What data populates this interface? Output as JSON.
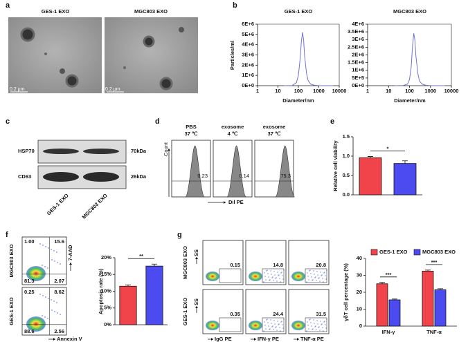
{
  "panel_a": {
    "letter": "a",
    "images": [
      {
        "title": "GES-1 EXO",
        "scale_bar": "0.2 μm"
      },
      {
        "title": "MGC803 EXO",
        "scale_bar": "0.2 μm"
      }
    ]
  },
  "panel_b": {
    "letter": "b"
  },
  "panel_c": {
    "letter": "c",
    "rows": [
      {
        "protein": "HSP70",
        "size": "70kDa"
      },
      {
        "protein": "CD63",
        "size": "26kDa"
      }
    ],
    "lanes": [
      "GES-1 EXO",
      "MGC803 EXO"
    ]
  },
  "panel_d": {
    "letter": "d",
    "y_label": "Count",
    "x_label": "Dil PE",
    "samples": [
      {
        "name": "PBS",
        "temp": "37 ℃",
        "percent": "0.23"
      },
      {
        "name": "exosome",
        "temp": "4 ℃",
        "percent": "0.14"
      },
      {
        "name": "exosome",
        "temp": "37 ℃",
        "percent": "75.3"
      }
    ]
  },
  "panel_e": {
    "letter": "e"
  },
  "panel_f": {
    "letter": "f",
    "x_label": "Annexin V",
    "y_label": "7-AAD",
    "rows": [
      {
        "name": "MGC803 EXO",
        "quadrants": [
          "1.00",
          "15.6",
          "81.3",
          "2.07"
        ]
      },
      {
        "name": "GES-1 EXO",
        "quadrants": [
          "0.25",
          "8.62",
          "88.6",
          "2.56"
        ]
      }
    ]
  },
  "panel_g": {
    "letter": "g",
    "y_label": "SS",
    "columns": [
      "IgG PE",
      "IFN-γ PE",
      "TNF-α PE"
    ],
    "rows": [
      {
        "name": "MGC803 EXO",
        "percents": [
          "0.15",
          "14.8",
          "20.8"
        ]
      },
      {
        "name": "GES-1 EXO",
        "percents": [
          "0.35",
          "24.4",
          "31.5"
        ]
      }
    ]
  },
  "chart_data": [
    {
      "type": "line",
      "title": "GES-1 EXO",
      "x_label": "Diameter/nm",
      "y_label": "Particles/ml",
      "log_x": true,
      "color": "#7070d8",
      "x": [
        20,
        50,
        80,
        100,
        120,
        140,
        160,
        180,
        200,
        250,
        300,
        400,
        600,
        1000,
        5000
      ],
      "values": [
        0,
        20000,
        300000,
        1000000,
        2500000,
        4300000,
        5200000,
        4500000,
        3000000,
        1200000,
        500000,
        150000,
        50000,
        10000,
        0
      ],
      "xlim": [
        1,
        10000
      ],
      "xticks": [
        1,
        10,
        100,
        1000,
        10000
      ],
      "ylim": [
        0,
        6000000
      ],
      "yticks": [
        {
          "value": 0,
          "label": "0E+0"
        },
        {
          "value": 1000000,
          "label": "1E+6"
        },
        {
          "value": 2000000,
          "label": "2E+6"
        },
        {
          "value": 3000000,
          "label": "3E+6"
        },
        {
          "value": 4000000,
          "label": "4E+6"
        },
        {
          "value": 5000000,
          "label": "5E+6"
        },
        {
          "value": 6000000,
          "label": "6E+6"
        }
      ]
    },
    {
      "type": "line",
      "title": "MGC803 EXO",
      "x_label": "Diameter/nm",
      "log_x": true,
      "color": "#7070d8",
      "x": [
        20,
        50,
        80,
        100,
        120,
        140,
        160,
        180,
        200,
        250,
        300,
        400,
        600,
        1000,
        5000
      ],
      "values": [
        0,
        10000,
        100000,
        400000,
        1200000,
        2600000,
        3400000,
        3000000,
        2000000,
        800000,
        300000,
        100000,
        30000,
        5000,
        0
      ],
      "xlim": [
        1,
        10000
      ],
      "xticks": [
        1,
        10,
        100,
        1000,
        10000
      ],
      "ylim": [
        0,
        4000000
      ],
      "yticks": [
        {
          "value": 0,
          "label": "0E+0"
        },
        {
          "value": 500000,
          "label": "5E+5"
        },
        {
          "value": 1000000,
          "label": "1E+6"
        },
        {
          "value": 1500000,
          "label": "1.5E+6"
        },
        {
          "value": 2000000,
          "label": "2E+6"
        },
        {
          "value": 2500000,
          "label": "2.5E+6"
        },
        {
          "value": 3000000,
          "label": "3E+6"
        },
        {
          "value": 3500000,
          "label": "3.5E+6"
        },
        {
          "value": 4000000,
          "label": "4E+6"
        }
      ]
    },
    {
      "type": "bar",
      "y_label": "Relative cell viability",
      "values": [
        0.96,
        0.81
      ],
      "errors": [
        0.03,
        0.07
      ],
      "colors": [
        "#f0444a",
        "#4b4bf0"
      ],
      "ylim": [
        0,
        1.5
      ],
      "yticks": [
        {
          "value": 0,
          "label": "0.0"
        },
        0.5,
        {
          "value": 1,
          "label": "1.0"
        },
        1.5
      ],
      "annotation": "*"
    },
    {
      "type": "bar",
      "y_label": "Apoptosis rate (%)",
      "values": [
        11.5,
        17.5
      ],
      "errors": [
        0.4,
        0.6
      ],
      "colors": [
        "#f0444a",
        "#4b4bf0"
      ],
      "ylim": [
        0,
        20
      ],
      "yticks": [
        {
          "value": 0,
          "label": "0%"
        },
        {
          "value": 5,
          "label": "5%"
        },
        {
          "value": 10,
          "label": "10%"
        },
        {
          "value": 15,
          "label": "15%"
        },
        {
          "value": 20,
          "label": "20%"
        }
      ],
      "annotation": "**"
    },
    {
      "type": "bar",
      "y_label": "γδT cell percentage (%)",
      "categories": [
        "IFN-γ",
        "TNF-α"
      ],
      "legend": "top",
      "series": [
        {
          "name": "GES-1 EXO",
          "color": "#f0444a",
          "values": [
            25,
            32.5
          ],
          "errors": [
            0.8,
            0.6
          ]
        },
        {
          "name": "MGC803 EXO",
          "color": "#4b4bf0",
          "values": [
            15.5,
            21.5
          ],
          "errors": [
            0.5,
            0.6
          ]
        }
      ],
      "ylim": [
        0,
        40
      ],
      "yticks": [
        0,
        10,
        20,
        30,
        40
      ],
      "annotations": [
        "***",
        "***"
      ]
    }
  ]
}
